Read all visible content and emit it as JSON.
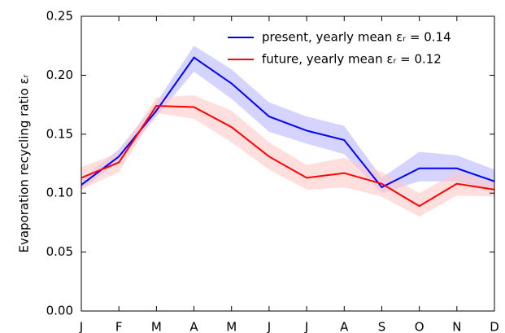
{
  "chart_data": {
    "type": "line",
    "ylabel": "Evaporation recycling ratio εᵣ",
    "categories": [
      "J",
      "F",
      "M",
      "A",
      "M",
      "J",
      "J",
      "A",
      "S",
      "O",
      "N",
      "D"
    ],
    "series": [
      {
        "name": "present, yearly mean εᵣ = 0.14",
        "color": "#0000ff",
        "band_color": "#b8b8ff",
        "values": [
          0.107,
          0.131,
          0.17,
          0.215,
          0.193,
          0.165,
          0.153,
          0.145,
          0.105,
          0.121,
          0.121,
          0.11
        ],
        "lower": [
          0.103,
          0.127,
          0.165,
          0.203,
          0.18,
          0.152,
          0.142,
          0.133,
          0.1,
          0.11,
          0.11,
          0.102
        ],
        "upper": [
          0.112,
          0.137,
          0.177,
          0.225,
          0.205,
          0.177,
          0.165,
          0.157,
          0.113,
          0.135,
          0.132,
          0.12
        ]
      },
      {
        "name": "future, yearly mean εᵣ = 0.12",
        "color": "#ff0000",
        "band_color": "#ffc8c8",
        "values": [
          0.113,
          0.126,
          0.174,
          0.173,
          0.156,
          0.131,
          0.113,
          0.117,
          0.108,
          0.089,
          0.108,
          0.103
        ],
        "lower": [
          0.103,
          0.118,
          0.168,
          0.163,
          0.143,
          0.12,
          0.103,
          0.105,
          0.097,
          0.08,
          0.098,
          0.097
        ],
        "upper": [
          0.122,
          0.134,
          0.181,
          0.183,
          0.17,
          0.143,
          0.124,
          0.13,
          0.118,
          0.1,
          0.118,
          0.109
        ]
      }
    ],
    "ylim": [
      0,
      0.25
    ],
    "yticks": [
      {
        "value": 0,
        "label": "0.00"
      },
      {
        "value": 0.05,
        "label": "0.05"
      },
      {
        "value": 0.1,
        "label": "0.10"
      },
      {
        "value": 0.15,
        "label": "0.15"
      },
      {
        "value": 0.2,
        "label": "0.20"
      },
      {
        "value": 0.25,
        "label": "0.25"
      }
    ],
    "legend": "upper right"
  }
}
